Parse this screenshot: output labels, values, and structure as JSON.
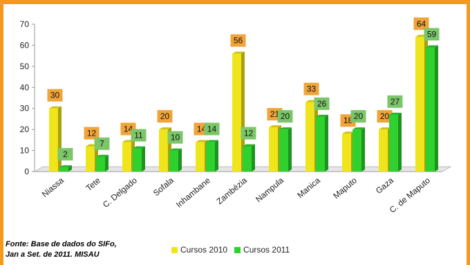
{
  "chart_data": {
    "type": "bar",
    "title": "",
    "xlabel": "",
    "ylabel": "",
    "ylim": [
      0,
      70
    ],
    "yticks": [
      0,
      10,
      20,
      30,
      40,
      50,
      60,
      70
    ],
    "grid": false,
    "legend_position": "bottom",
    "categories": [
      "Niassa",
      "Tete",
      "C. Delgado",
      "Sofala",
      "Inhambane",
      "Zambézia",
      "Nampula",
      "Manica",
      "Maputo",
      "Gaza",
      "C. de Maputo"
    ],
    "series": [
      {
        "name": "Cursos 2010",
        "color": "#f0e41a",
        "label_bg": "#f0a43a",
        "values": [
          30,
          12,
          14,
          20,
          14,
          56,
          21,
          33,
          18,
          20,
          64
        ]
      },
      {
        "name": "Cursos 2011",
        "color": "#2ed12e",
        "label_bg": "#7cc66a",
        "values": [
          2,
          7,
          11,
          10,
          14,
          12,
          20,
          26,
          20,
          27,
          59
        ]
      }
    ]
  },
  "source_note": {
    "line1": "Fonte: Base de dados do SIFo,",
    "line2": "Jan a Set. de 2011. MISAU"
  },
  "colors": {
    "border": "#f39a1e"
  }
}
